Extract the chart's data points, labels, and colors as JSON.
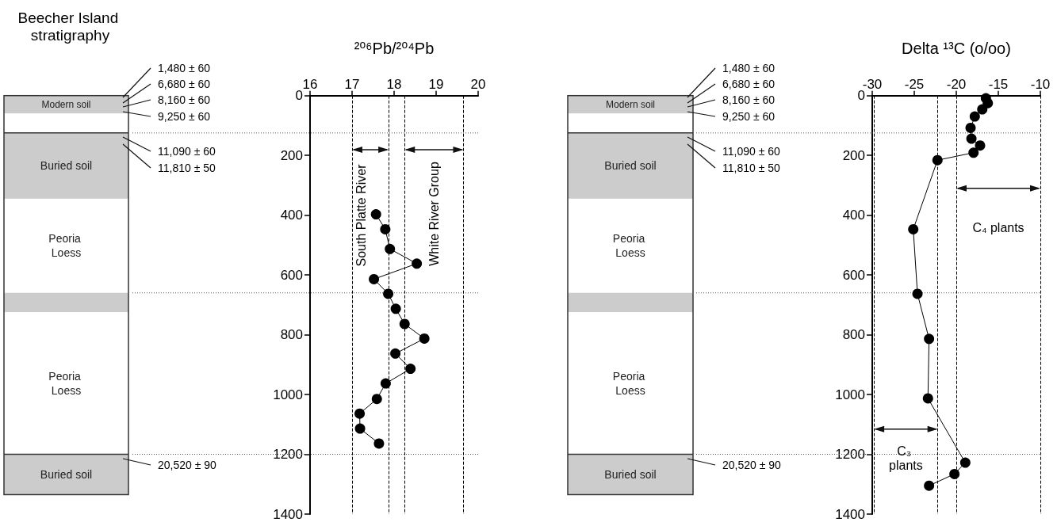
{
  "chart_data": [
    {
      "type": "other",
      "title": "Beecher Island stratigraphy",
      "annotations": [
        "Modern soil",
        "Buried soil",
        "Peoria Loess",
        "Peoria Loess",
        "Buried soil",
        "1,480 ± 60",
        "6,680 ± 60",
        "8,160 ± 60",
        "9,250 ± 60",
        "11,090 ± 60",
        "11,810 ± 50",
        "20,520 ± 90"
      ]
    },
    {
      "type": "line",
      "xlabel": "²⁰⁶Pb/²⁰⁴Pb",
      "xlim": [
        16,
        20
      ],
      "xticks": [
        16,
        17,
        18,
        19,
        20
      ],
      "ylim": [
        1400,
        0
      ],
      "yticks": [
        0,
        200,
        400,
        600,
        800,
        1000,
        1200,
        1400
      ],
      "marker": "circle",
      "line_style": "solid",
      "series": [
        {
          "color": "#000000",
          "x": [
            17.57,
            17.79,
            17.9,
            18.54,
            17.52,
            17.86,
            18.04,
            18.25,
            18.72,
            18.03,
            18.39,
            17.8,
            17.59,
            17.18,
            17.19,
            17.64
          ],
          "values": [
            397,
            447,
            513,
            562,
            614,
            663,
            713,
            764,
            813,
            863,
            914,
            963,
            1015,
            1064,
            1114,
            1164
          ]
        }
      ],
      "ref_lines": [
        {
          "axis": "x",
          "value": 17,
          "line_style": "dashed"
        },
        {
          "axis": "x",
          "value": 17.87,
          "line_style": "dashed"
        },
        {
          "axis": "x",
          "value": 18.25,
          "line_style": "dashed"
        },
        {
          "axis": "x",
          "value": 19.65,
          "line_style": "dashed"
        },
        {
          "axis": "y",
          "value": 125,
          "line_style": "dotted"
        },
        {
          "axis": "y",
          "value": 660,
          "line_style": "dotted"
        },
        {
          "axis": "y",
          "value": 1200,
          "line_style": "dotted"
        }
      ],
      "annotations": [
        {
          "text": "South Platte River",
          "x": 17,
          "y": 181
        },
        "White River Group"
      ]
    },
    {
      "type": "other",
      "annotations": [
        "Modern soil",
        "Buried soil",
        "Peoria Loess",
        "Peoria Loess",
        "Buried soil",
        "1,480 ± 60",
        "6,680 ± 60",
        "8,160 ± 60",
        "9,250 ± 60",
        "11,090 ± 60",
        "11,810 ± 50",
        "20,520 ± 90"
      ]
    },
    {
      "type": "line",
      "xlabel": "Delta ¹³C (o/oo)",
      "xlim": [
        -30,
        -10
      ],
      "xticks": [
        -30,
        -25,
        -20,
        -15,
        -10
      ],
      "ylim": [
        1400,
        0
      ],
      "yticks": [
        0,
        200,
        400,
        600,
        800,
        1000,
        1200,
        1400
      ],
      "marker": "circle",
      "line_style": "solid",
      "series": [
        {
          "color": "#000000",
          "x": [
            -16.48,
            -16.25,
            -16.91,
            -17.8,
            -18.3,
            -18.2,
            -17.17,
            -17.95,
            -22.24,
            -25.12,
            -24.62,
            -23.24,
            -23.37,
            -18.93,
            -20.22,
            -23.24
          ],
          "values": [
            9,
            25,
            46,
            70,
            108,
            144,
            167,
            191,
            216,
            447,
            663,
            814,
            1013,
            1228,
            1266,
            1305
          ]
        }
      ],
      "ref_lines": [
        {
          "axis": "x",
          "value": -29.8,
          "line_style": "dashed"
        },
        {
          "axis": "x",
          "value": -22.2,
          "line_style": "dashed"
        },
        {
          "axis": "x",
          "value": -20,
          "line_style": "dashed"
        },
        {
          "axis": "x",
          "value": -10,
          "line_style": "dashed"
        },
        {
          "axis": "y",
          "value": 125,
          "line_style": "dotted"
        },
        {
          "axis": "y",
          "value": 660,
          "line_style": "dotted"
        },
        {
          "axis": "y",
          "value": 1200,
          "line_style": "dotted"
        }
      ],
      "annotations": [
        "C₃ plants",
        "C₄ plants"
      ]
    }
  ]
}
